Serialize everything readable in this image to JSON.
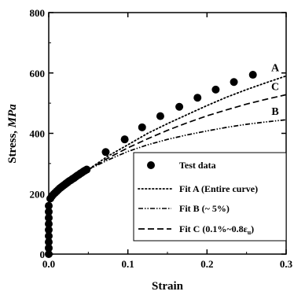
{
  "chart_data": {
    "type": "scatter",
    "xlabel": "Strain",
    "ylabel": "Stress, MPa",
    "ylabel_parts": {
      "prefix": "Stress, ",
      "unit": "MPa"
    },
    "xlim": [
      0,
      0.3
    ],
    "ylim": [
      0,
      800
    ],
    "xticks": [
      0.0,
      0.1,
      0.2,
      0.3
    ],
    "xtick_labels": [
      "0.0",
      "0.1",
      "0.2",
      "0.3"
    ],
    "yticks": [
      0,
      200,
      400,
      600,
      800
    ],
    "ytick_labels": [
      "0",
      "200",
      "400",
      "600",
      "800"
    ],
    "grid": false,
    "legend_position": "bottom-right",
    "series": [
      {
        "name": "Test data",
        "kind": "markers",
        "x": [
          0,
          0,
          0,
          0,
          0,
          0,
          0,
          0,
          0,
          0.002,
          0.004,
          0.006,
          0.008,
          0.01,
          0.012,
          0.014,
          0.016,
          0.018,
          0.02,
          0.022,
          0.024,
          0.026,
          0.028,
          0.03,
          0.032,
          0.034,
          0.036,
          0.038,
          0.04,
          0.042,
          0.044,
          0.046,
          0.048,
          0.072,
          0.096,
          0.118,
          0.141,
          0.165,
          0.188,
          0.211,
          0.234,
          0.258
        ],
        "y": [
          0,
          20,
          40,
          60,
          80,
          100,
          120,
          140,
          160,
          184,
          192,
          198,
          203,
          208,
          213,
          218,
          222,
          226,
          230,
          234,
          238,
          242,
          245,
          249,
          252,
          256,
          260,
          263,
          267,
          270,
          274,
          277,
          280,
          338,
          380,
          420,
          457,
          488,
          518,
          545,
          570,
          594
        ]
      },
      {
        "name": "Fit A (Entire curve)",
        "kind": "dotted",
        "label": "A",
        "x": [
          0,
          0.003,
          0.01,
          0.02,
          0.03,
          0.05,
          0.075,
          0.1,
          0.125,
          0.15,
          0.175,
          0.2,
          0.225,
          0.25,
          0.275,
          0.3
        ],
        "y": [
          190,
          195,
          210,
          228,
          245,
          280,
          325,
          362,
          400,
          432,
          462,
          492,
          520,
          545,
          568,
          590
        ]
      },
      {
        "name": "Fit B (~ 5%)",
        "kind": "dashdotdot",
        "label": "B",
        "x": [
          0,
          0.003,
          0.01,
          0.02,
          0.03,
          0.05,
          0.075,
          0.1,
          0.125,
          0.15,
          0.175,
          0.2,
          0.225,
          0.25,
          0.275,
          0.3
        ],
        "y": [
          190,
          195,
          210,
          228,
          245,
          280,
          312,
          340,
          362,
          380,
          395,
          408,
          420,
          430,
          438,
          445
        ]
      },
      {
        "name": "Fit C (0.1%~0.8ε",
        "name_subscript": "u",
        "name_suffix": ")",
        "kind": "dashed",
        "label": "C",
        "x": [
          0,
          0.003,
          0.01,
          0.02,
          0.03,
          0.05,
          0.075,
          0.1,
          0.125,
          0.15,
          0.175,
          0.2,
          0.225,
          0.25,
          0.275,
          0.3
        ],
        "y": [
          190,
          195,
          210,
          228,
          245,
          280,
          318,
          352,
          382,
          410,
          435,
          458,
          478,
          497,
          513,
          528
        ]
      }
    ]
  }
}
